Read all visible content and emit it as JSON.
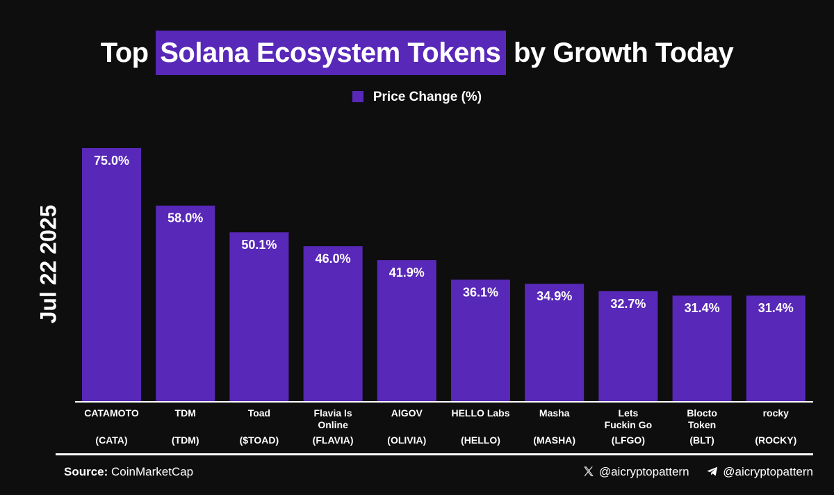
{
  "title": {
    "pre": "Top",
    "highlight": "Solana Ecosystem Tokens",
    "post": "by Growth Today"
  },
  "legend": {
    "label": "Price Change (%)"
  },
  "date_label": "Jul 22 2025",
  "footer": {
    "source_label": "Source:",
    "source_value": "CoinMarketCap",
    "x_handle": "@aicryptopattern",
    "telegram_handle": "@aicryptopattern"
  },
  "colors": {
    "bar": "#5828b8",
    "background": "#0e0e0e",
    "text": "#ffffff"
  },
  "chart_data": {
    "type": "bar",
    "title": "Top Solana Ecosystem Tokens by Growth Today",
    "categories": [
      {
        "name": [
          "CATAMOTO"
        ],
        "symbol": "(CATA)"
      },
      {
        "name": [
          "TDM"
        ],
        "symbol": "(TDM)"
      },
      {
        "name": [
          "Toad"
        ],
        "symbol": "($TOAD)"
      },
      {
        "name": [
          "Flavia Is",
          "Online"
        ],
        "symbol": "(FLAVIA)"
      },
      {
        "name": [
          "AIGOV"
        ],
        "symbol": "(OLIVIA)"
      },
      {
        "name": [
          "HELLO Labs"
        ],
        "symbol": "(HELLO)"
      },
      {
        "name": [
          "Masha"
        ],
        "symbol": "(MASHA)"
      },
      {
        "name": [
          "Lets",
          "Fuckin Go"
        ],
        "symbol": "(LFGO)"
      },
      {
        "name": [
          "Blocto",
          "Token"
        ],
        "symbol": "(BLT)"
      },
      {
        "name": [
          "rocky"
        ],
        "symbol": "(ROCKY)"
      }
    ],
    "values": [
      75.0,
      58.0,
      50.1,
      46.0,
      41.9,
      36.1,
      34.9,
      32.7,
      31.4,
      31.4
    ],
    "value_labels": [
      "75.0%",
      "58.0%",
      "50.1%",
      "46.0%",
      "41.9%",
      "36.1%",
      "34.9%",
      "32.7%",
      "31.4%",
      "31.4%"
    ],
    "series": [
      {
        "name": "Price Change (%)"
      }
    ],
    "ylim": [
      0,
      75
    ],
    "grid": false,
    "legend_position": "top-center"
  }
}
